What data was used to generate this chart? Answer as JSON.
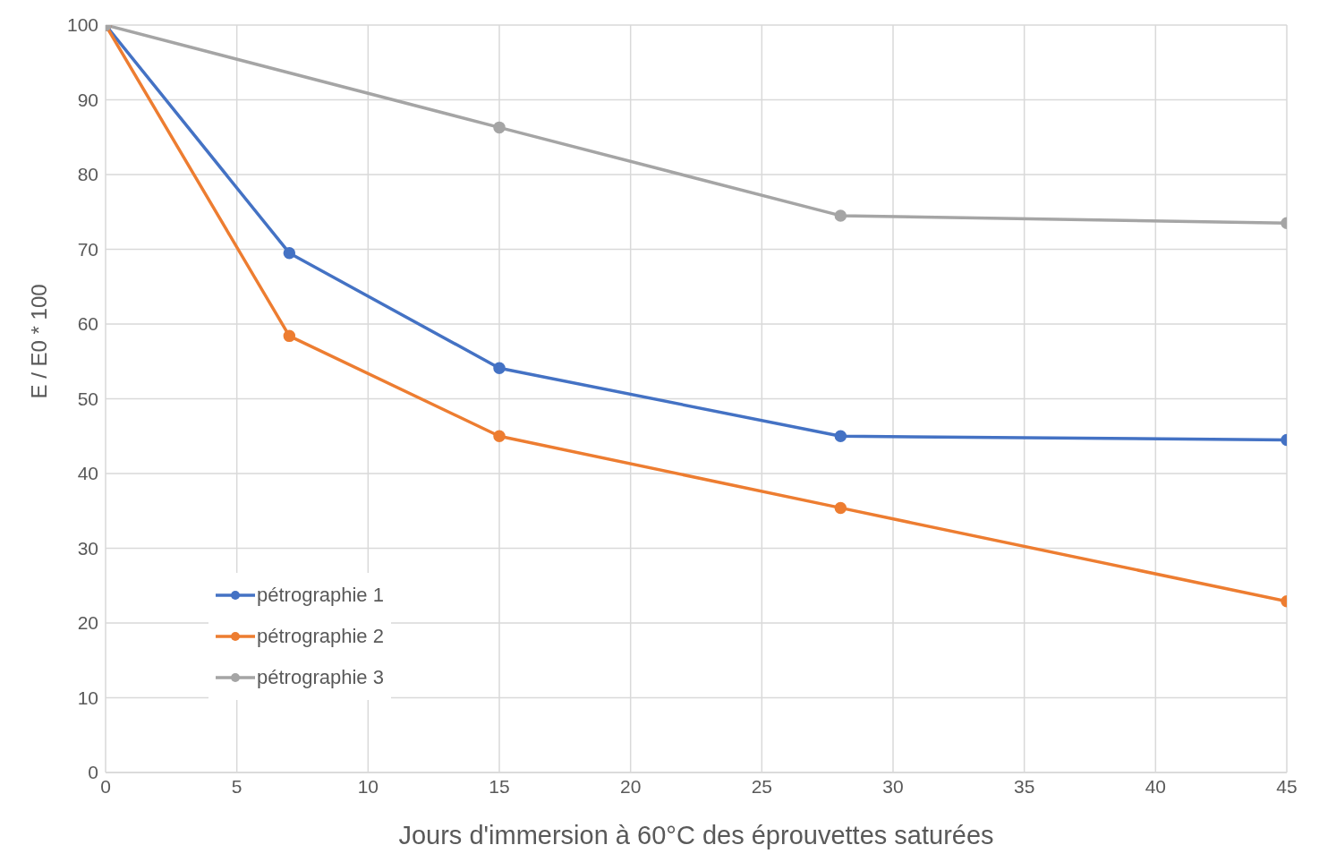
{
  "chart_data": {
    "type": "line",
    "xlabel": "Jours d'immersion à 60°C des éprouvettes saturées",
    "ylabel": "E / E0 * 100",
    "series": [
      {
        "name": "pétrographie 1",
        "color": "#4472c4",
        "x": [
          0,
          7,
          15,
          28,
          45
        ],
        "values": [
          100,
          69.5,
          54.1,
          45,
          44.5
        ]
      },
      {
        "name": "pétrographie 2",
        "color": "#ed7d31",
        "x": [
          0,
          7,
          15,
          28,
          45
        ],
        "values": [
          100,
          58.4,
          45,
          35.4,
          22.9
        ]
      },
      {
        "name": "pétrographie 3",
        "color": "#a5a5a5",
        "x": [
          0,
          15,
          28,
          45
        ],
        "values": [
          100,
          86.3,
          74.5,
          73.5
        ]
      }
    ],
    "xlim": [
      0,
      45
    ],
    "xticks": [
      0,
      5,
      10,
      15,
      20,
      25,
      30,
      35,
      40,
      45
    ],
    "ylim": [
      0,
      100
    ],
    "yticks": [
      0,
      10,
      20,
      30,
      40,
      50,
      60,
      70,
      80,
      90,
      100
    ],
    "grid": true,
    "legend": "bottom left",
    "marker": "circle",
    "line_style": "solid"
  }
}
